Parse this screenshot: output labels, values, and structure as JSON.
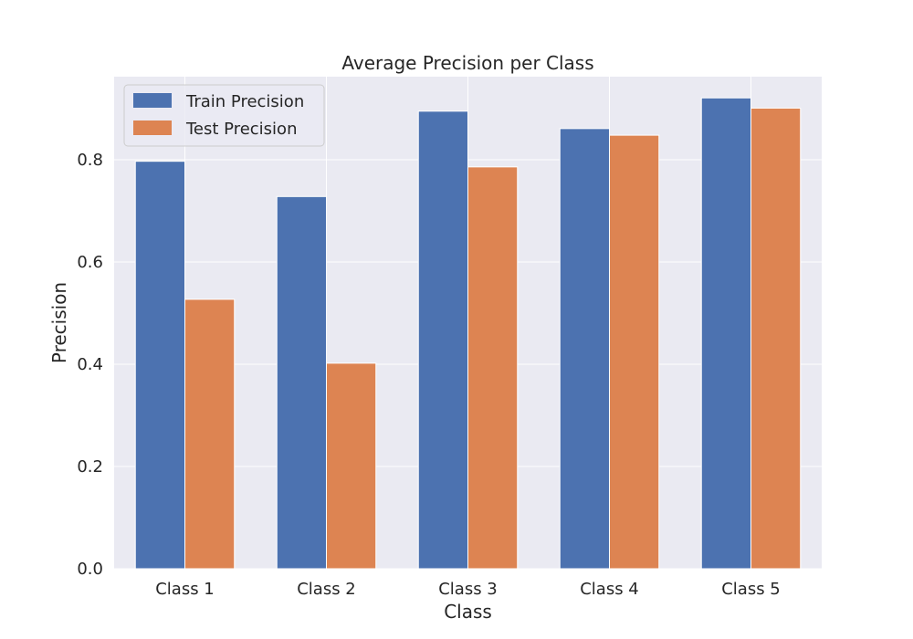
{
  "chart_data": {
    "type": "bar",
    "title": "Average Precision per Class",
    "xlabel": "Class",
    "ylabel": "Precision",
    "categories": [
      "Class 1",
      "Class 2",
      "Class 3",
      "Class 4",
      "Class 5"
    ],
    "series": [
      {
        "name": "Train Precision",
        "color": "#4c72b0",
        "values": [
          0.797,
          0.728,
          0.895,
          0.861,
          0.921
        ]
      },
      {
        "name": "Test Precision",
        "color": "#dd8452",
        "values": [
          0.527,
          0.402,
          0.786,
          0.848,
          0.901
        ]
      }
    ],
    "ylim": [
      0,
      0.9625
    ],
    "yticks": [
      0.0,
      0.2,
      0.4,
      0.6,
      0.8
    ],
    "ytick_labels": [
      "0.0",
      "0.2",
      "0.4",
      "0.6",
      "0.8"
    ],
    "grid": true,
    "legend_position": "top-left",
    "background_color": "#eaeaf2",
    "grid_color": "#ffffff"
  }
}
